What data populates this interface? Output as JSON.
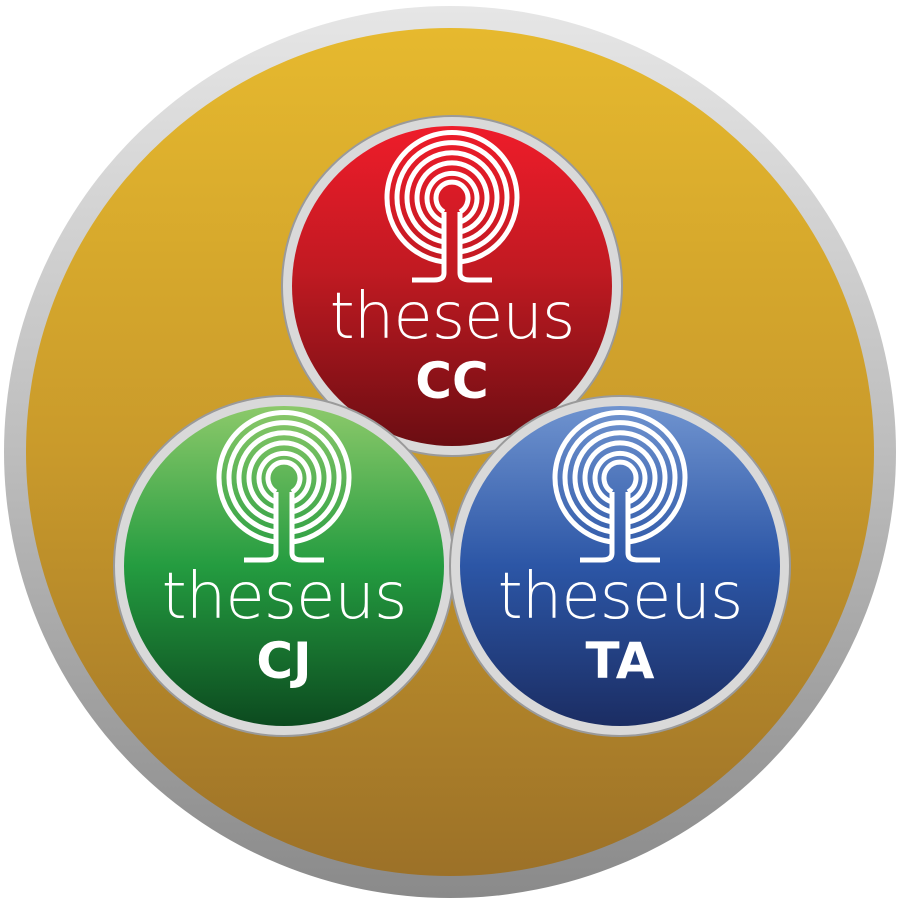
{
  "badges": [
    {
      "name": "theseus",
      "code": "CC"
    },
    {
      "name": "theseus",
      "code": "CJ"
    },
    {
      "name": "theseus",
      "code": "TA"
    }
  ]
}
